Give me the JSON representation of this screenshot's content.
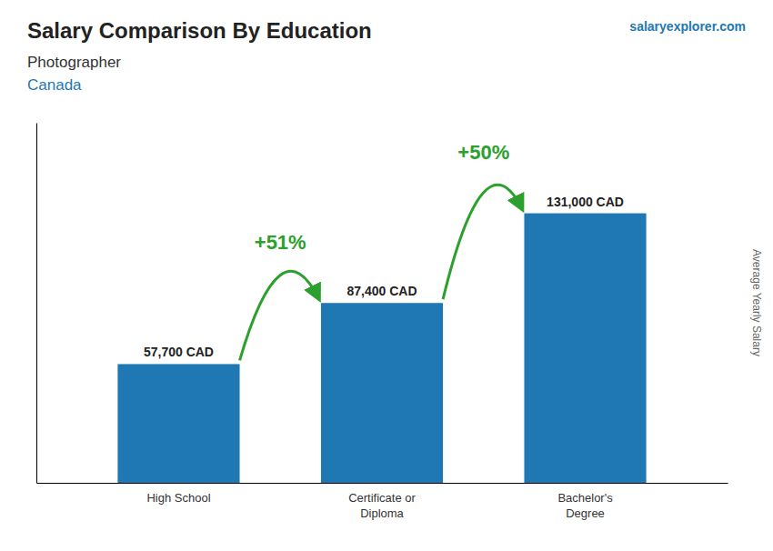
{
  "chart_data": {
    "type": "bar",
    "title": "Salary Comparison By Education",
    "subtitle": [
      "Photographer",
      "Canada"
    ],
    "y_label": "Average Yearly Salary",
    "categories": [
      "High School",
      "Certificate or\nDiploma",
      "Bachelor's\nDegree"
    ],
    "values": [
      57700,
      87400,
      131000
    ],
    "value_labels": [
      "57,700 CAD",
      "87,400 CAD",
      "131,000 CAD"
    ],
    "data_labels": true,
    "annotations": [
      "+51%",
      "+50%",
      "salaryexplorer.com"
    ],
    "ylim": [
      0,
      175000
    ],
    "tick_labels": "x",
    "grid": false
  }
}
